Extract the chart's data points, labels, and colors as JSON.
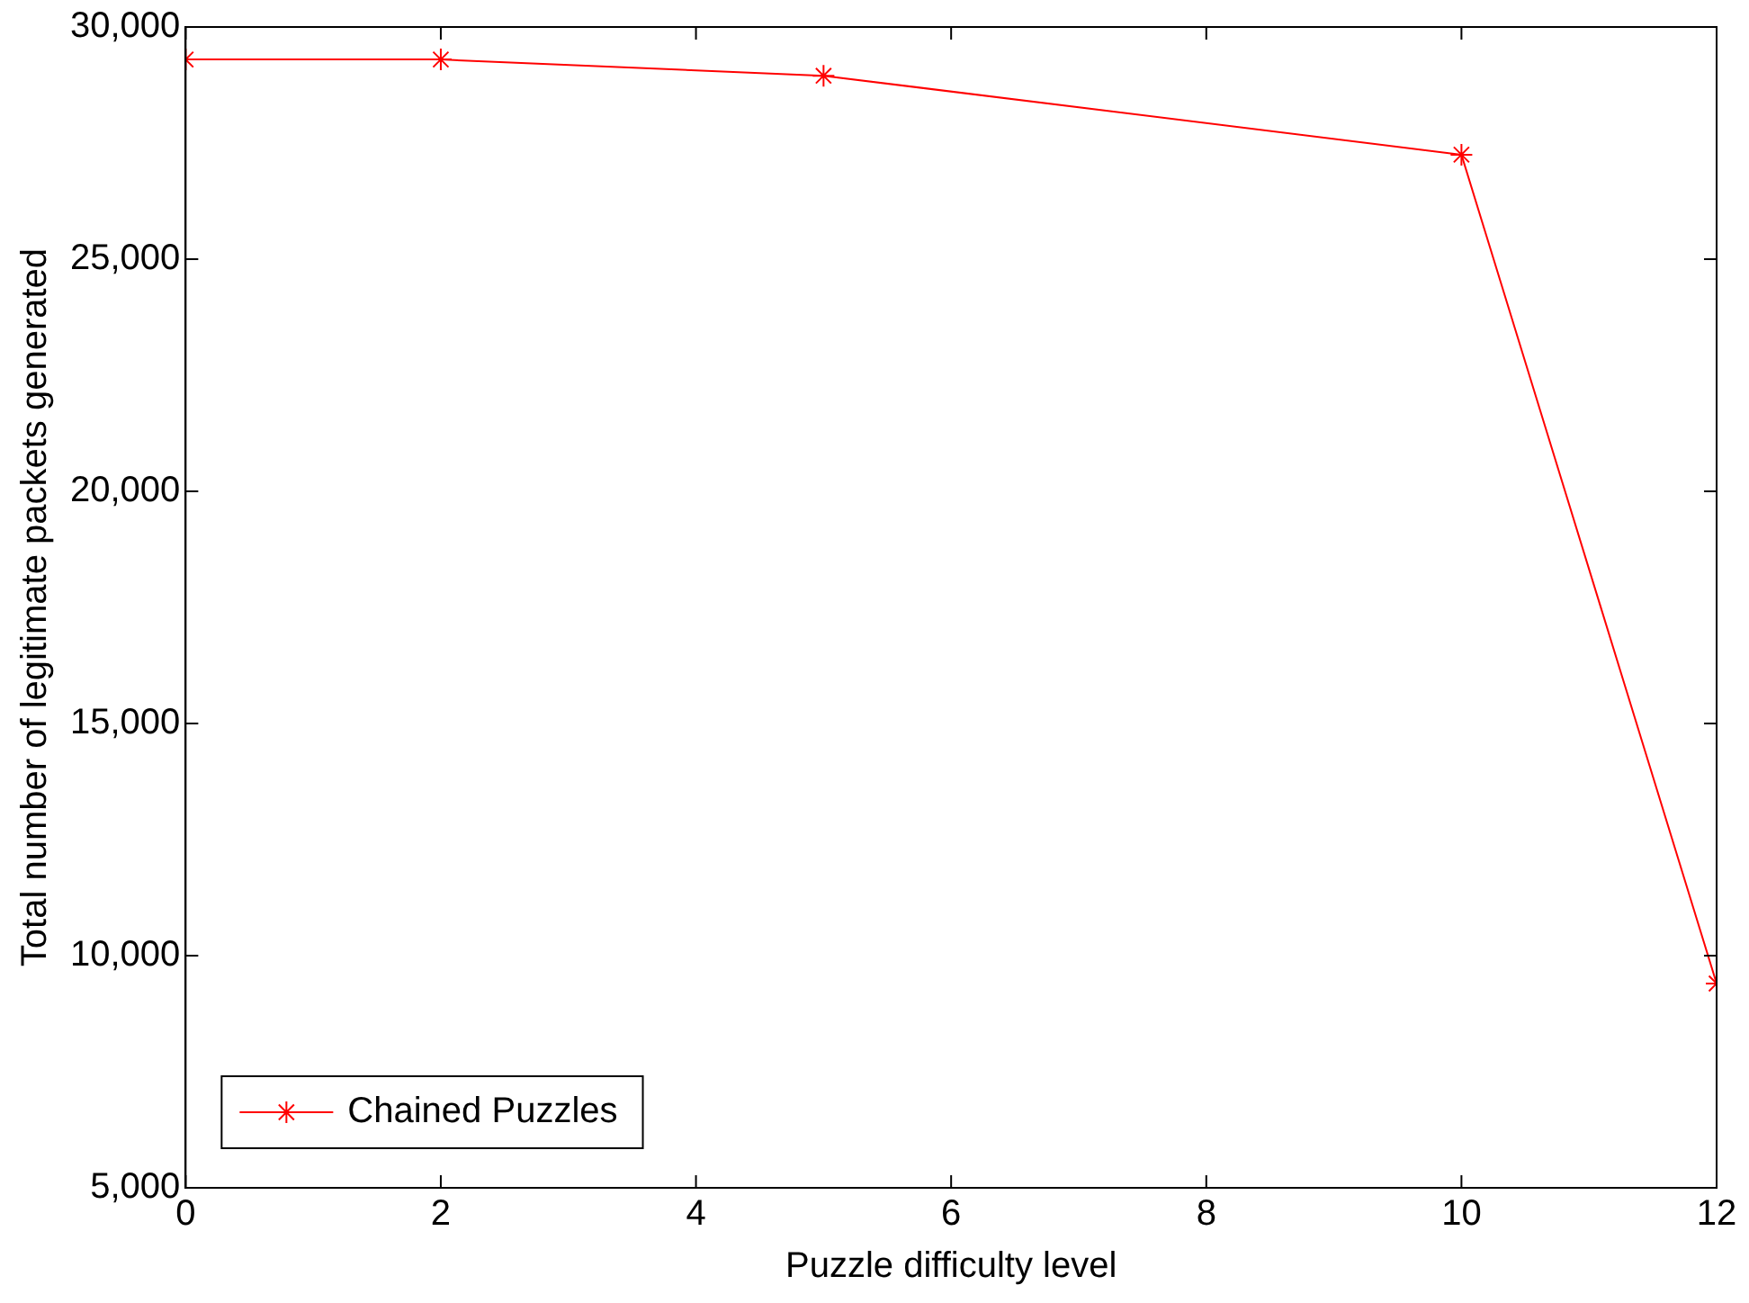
{
  "chart_data": {
    "type": "line",
    "xlabel": "Puzzle difficulty level",
    "ylabel": "Total number of legitimate packets generated",
    "x": [
      0,
      2,
      5,
      10,
      12
    ],
    "series": [
      {
        "name": "Chained Puzzles",
        "color": "#ff0000",
        "values": [
          29300,
          29300,
          28950,
          27250,
          9400
        ]
      }
    ],
    "xlim": [
      0,
      12
    ],
    "xticks": [
      0,
      2,
      4,
      6,
      8,
      10,
      12
    ],
    "ylim": [
      5000,
      30000
    ],
    "yticks": [
      {
        "value": 5000,
        "label": "5,000"
      },
      {
        "value": 10000,
        "label": "10,000"
      },
      {
        "value": 15000,
        "label": "15,000"
      },
      {
        "value": 20000,
        "label": "20,000"
      },
      {
        "value": 25000,
        "label": "25,000"
      },
      {
        "value": 30000,
        "label": "30,000"
      }
    ],
    "marker": "cross",
    "line_style": "solid",
    "legend": "bottom left",
    "grid": false
  }
}
